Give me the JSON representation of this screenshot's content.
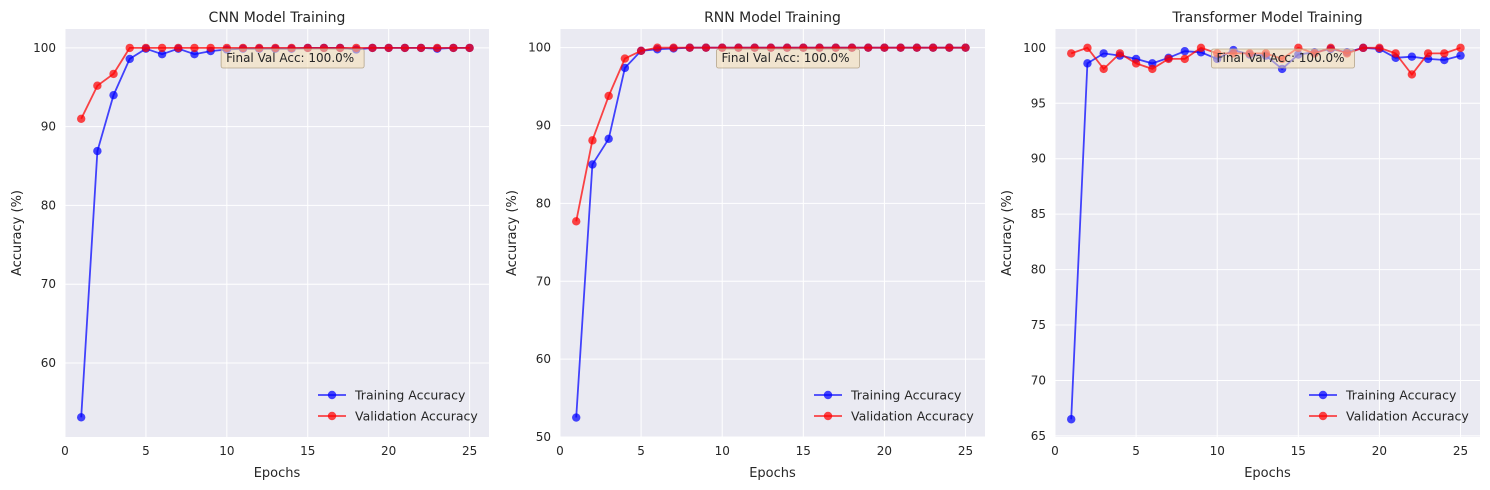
{
  "colors": {
    "panel_bg": "#eaeaf2",
    "grid": "#ffffff",
    "training": "#0000ff",
    "validation": "#ff0000",
    "annotation_bg": "#f5deb3"
  },
  "legend_position": "lower right",
  "chart_data": [
    {
      "type": "line",
      "title": "CNN Model Training",
      "xlabel": "Epochs",
      "ylabel": "Accuracy (%)",
      "xlim": [
        0,
        26.2
      ],
      "ylim": [
        50.6,
        102.4
      ],
      "xticks": [
        0,
        5,
        10,
        15,
        20,
        25
      ],
      "yticks": [
        60,
        70,
        80,
        90,
        100
      ],
      "grid": true,
      "legend": "lower right",
      "annotation": "Final Val Acc: 100.0%",
      "x": [
        1,
        2,
        3,
        4,
        5,
        6,
        7,
        8,
        9,
        10,
        11,
        12,
        13,
        14,
        15,
        16,
        17,
        18,
        19,
        20,
        21,
        22,
        23,
        24,
        25
      ],
      "series": [
        {
          "name": "Training Accuracy",
          "color": "#0000ff",
          "values": [
            53.1,
            86.9,
            94.0,
            98.6,
            99.9,
            99.2,
            99.9,
            99.2,
            99.6,
            99.8,
            99.9,
            99.9,
            99.9,
            99.9,
            100,
            100,
            100,
            99.8,
            100,
            100,
            100,
            100,
            99.9,
            100,
            100
          ]
        },
        {
          "name": "Validation Accuracy",
          "color": "#ff0000",
          "values": [
            91.0,
            95.2,
            96.7,
            100,
            100,
            100,
            100,
            100,
            100,
            100,
            100,
            100,
            100,
            100,
            100,
            100,
            100,
            100,
            100,
            100,
            100,
            100,
            100,
            100,
            100
          ]
        }
      ]
    },
    {
      "type": "line",
      "title": "RNN Model Training",
      "xlabel": "Epochs",
      "ylabel": "Accuracy (%)",
      "xlim": [
        0,
        26.2
      ],
      "ylim": [
        50,
        102.4
      ],
      "xticks": [
        0,
        5,
        10,
        15,
        20,
        25
      ],
      "yticks": [
        50,
        60,
        70,
        80,
        90,
        100
      ],
      "grid": true,
      "legend": "lower right",
      "annotation": "Final Val Acc: 100.0%",
      "x": [
        1,
        2,
        3,
        4,
        5,
        6,
        7,
        8,
        9,
        10,
        11,
        12,
        13,
        14,
        15,
        16,
        17,
        18,
        19,
        20,
        21,
        22,
        23,
        24,
        25
      ],
      "series": [
        {
          "name": "Training Accuracy",
          "color": "#0000ff",
          "values": [
            52.5,
            85.0,
            88.3,
            97.4,
            99.6,
            99.8,
            99.9,
            100,
            100,
            100,
            100,
            100,
            100,
            100,
            100,
            100,
            100,
            100,
            100,
            100,
            100,
            100,
            100,
            100,
            100
          ]
        },
        {
          "name": "Validation Accuracy",
          "color": "#ff0000",
          "values": [
            77.7,
            88.1,
            93.8,
            98.6,
            99.6,
            100,
            100,
            100,
            100,
            100,
            100,
            100,
            100,
            100,
            100,
            100,
            100,
            100,
            100,
            100,
            100,
            100,
            100,
            100,
            100
          ]
        }
      ]
    },
    {
      "type": "line",
      "title": "Transformer Model Training",
      "xlabel": "Epochs",
      "ylabel": "Accuracy (%)",
      "xlim": [
        0,
        26.2
      ],
      "ylim": [
        64.9,
        101.7
      ],
      "xticks": [
        0,
        5,
        10,
        15,
        20,
        25
      ],
      "yticks": [
        65,
        70,
        75,
        80,
        85,
        90,
        95,
        100
      ],
      "grid": true,
      "legend": "lower right",
      "annotation": "Final Val Acc: 100.0%",
      "x": [
        1,
        2,
        3,
        4,
        5,
        6,
        7,
        8,
        9,
        10,
        11,
        12,
        13,
        14,
        15,
        16,
        17,
        18,
        19,
        20,
        21,
        22,
        23,
        24,
        25
      ],
      "series": [
        {
          "name": "Training Accuracy",
          "color": "#0000ff",
          "values": [
            66.5,
            98.6,
            99.5,
            99.3,
            99.0,
            98.6,
            99.1,
            99.7,
            99.6,
            99.0,
            99.8,
            99.4,
            99.3,
            98.1,
            99.4,
            99.6,
            99.9,
            99.6,
            100,
            99.9,
            99.1,
            99.2,
            99.0,
            98.9,
            99.3
          ]
        },
        {
          "name": "Validation Accuracy",
          "color": "#ff0000",
          "values": [
            99.5,
            100,
            98.1,
            99.5,
            98.6,
            98.1,
            99.0,
            99.0,
            100,
            99.5,
            99.5,
            99.5,
            99.5,
            99.0,
            100,
            99.5,
            100,
            99.5,
            100,
            100,
            99.5,
            97.6,
            99.5,
            99.5,
            100
          ]
        }
      ]
    }
  ]
}
